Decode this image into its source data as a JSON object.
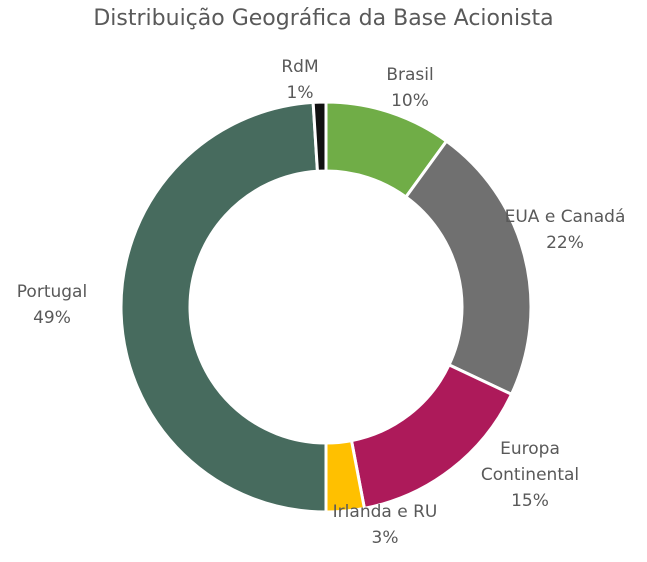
{
  "chart_data": {
    "type": "donut",
    "title": "Distribuição Geográfica da Base Acionista",
    "categories": [
      "Brasil",
      "EUA e Canadá",
      "Europa Continental",
      "Irlanda e RU",
      "Portugal",
      "RdM"
    ],
    "values": [
      10,
      22,
      15,
      3,
      49,
      1
    ],
    "value_labels": [
      "10%",
      "22%",
      "15%",
      "3%",
      "49%",
      "1%"
    ],
    "colors": [
      "#70ad47",
      "#707070",
      "#ad1a5a",
      "#ffc000",
      "#476b5e",
      "#111111"
    ]
  }
}
